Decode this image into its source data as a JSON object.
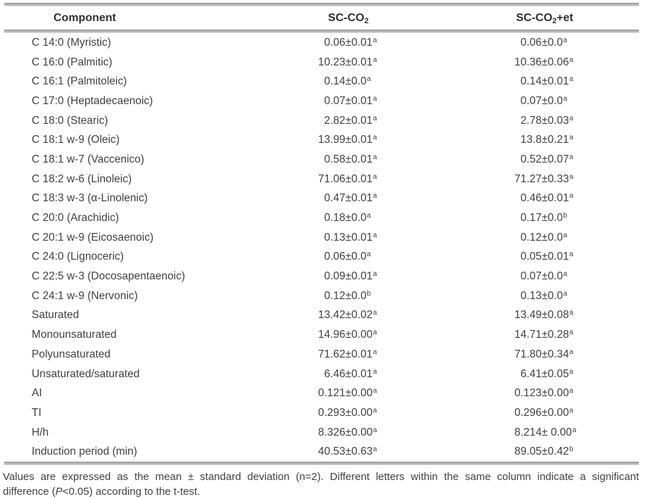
{
  "table": {
    "plus_minus": "±",
    "header": {
      "component": "Component",
      "col2": {
        "prefix": "SC-CO",
        "sub": "2",
        "suffix": ""
      },
      "col3": {
        "prefix": "SC-CO",
        "sub": "2",
        "suffix": "+et"
      }
    },
    "rows": [
      {
        "component": "C 14:0 (Myristic)",
        "sc_co2": {
          "mean": "0.06",
          "sd": "0.01",
          "sup": "a"
        },
        "sc_co2_et": {
          "mean": "0.06",
          "sd": "0.0",
          "sup": "a"
        }
      },
      {
        "component": "C 16:0 (Palmitic)",
        "sc_co2": {
          "mean": "10.23",
          "sd": "0.01",
          "sup": "a"
        },
        "sc_co2_et": {
          "mean": "10.36",
          "sd": "0.06",
          "sup": "a"
        }
      },
      {
        "component": "C 16:1 (Palmitoleic)",
        "sc_co2": {
          "mean": "0.14",
          "sd": "0.0",
          "sup": "a"
        },
        "sc_co2_et": {
          "mean": "0.14",
          "sd": "0.01",
          "sup": "a"
        }
      },
      {
        "component": "C 17:0 (Heptadecaenoic)",
        "sc_co2": {
          "mean": "0.07",
          "sd": "0.01",
          "sup": "a"
        },
        "sc_co2_et": {
          "mean": "0.07",
          "sd": "0.0",
          "sup": "a"
        }
      },
      {
        "component": "C 18:0 (Stearic)",
        "sc_co2": {
          "mean": "2.82",
          "sd": "0.01",
          "sup": "a"
        },
        "sc_co2_et": {
          "mean": "2.78",
          "sd": "0.03",
          "sup": "a"
        }
      },
      {
        "component": "C 18:1 w-9 (Oleic)",
        "sc_co2": {
          "mean": "13.99",
          "sd": "0.01",
          "sup": "a"
        },
        "sc_co2_et": {
          "mean": "13.8",
          "sd": "0.21",
          "sup": "a"
        }
      },
      {
        "component": "C 18:1 w-7 (Vaccenico)",
        "sc_co2": {
          "mean": "0.58",
          "sd": "0.01",
          "sup": "a"
        },
        "sc_co2_et": {
          "mean": "0.52",
          "sd": "0.07",
          "sup": "a"
        }
      },
      {
        "component": "C 18:2 w-6 (Linoleic)",
        "sc_co2": {
          "mean": "71.06",
          "sd": "0.01",
          "sup": "a"
        },
        "sc_co2_et": {
          "mean": "71.27",
          "sd": "0.33",
          "sup": "a"
        }
      },
      {
        "component": "C 18:3 w-3 (α-Linolenic)",
        "sc_co2": {
          "mean": "0.47",
          "sd": "0.01",
          "sup": "a"
        },
        "sc_co2_et": {
          "mean": "0.46",
          "sd": "0.01",
          "sup": "a"
        }
      },
      {
        "component": "C 20:0 (Arachidic)",
        "sc_co2": {
          "mean": "0.18",
          "sd": "0.0",
          "sup": "a"
        },
        "sc_co2_et": {
          "mean": "0.17",
          "sd": "0.0",
          "sup": "b"
        }
      },
      {
        "component": "C 20:1 w-9 (Eicosaenoic)",
        "sc_co2": {
          "mean": "0.13",
          "sd": "0.01",
          "sup": "a"
        },
        "sc_co2_et": {
          "mean": "0.12",
          "sd": "0.0",
          "sup": "a"
        }
      },
      {
        "component": "C 24:0 (Lignoceric)",
        "sc_co2": {
          "mean": "0.06",
          "sd": "0.0",
          "sup": "a"
        },
        "sc_co2_et": {
          "mean": "0.05",
          "sd": "0.01",
          "sup": "a"
        }
      },
      {
        "component": "C 22:5 w-3 (Docosapentaenoic)",
        "sc_co2": {
          "mean": "0.09",
          "sd": "0.01",
          "sup": "a"
        },
        "sc_co2_et": {
          "mean": "0.07",
          "sd": "0.0",
          "sup": "a"
        }
      },
      {
        "component": "C 24:1 w-9 (Nervonic)",
        "sc_co2": {
          "mean": "0.12",
          "sd": "0.0",
          "sup": "b"
        },
        "sc_co2_et": {
          "mean": "0.13",
          "sd": "0.0",
          "sup": "a"
        }
      },
      {
        "component": "Saturated",
        "sc_co2": {
          "mean": "13.42",
          "sd": "0.02",
          "sup": "a"
        },
        "sc_co2_et": {
          "mean": "13.49",
          "sd": "0.08",
          "sup": "a"
        }
      },
      {
        "component": "Monounsaturated",
        "sc_co2": {
          "mean": "14.96",
          "sd": "0.00",
          "sup": "a"
        },
        "sc_co2_et": {
          "mean": "14.71",
          "sd": "0.28",
          "sup": "a"
        }
      },
      {
        "component": "Polyunsaturated",
        "sc_co2": {
          "mean": "71.62",
          "sd": "0.01",
          "sup": "a"
        },
        "sc_co2_et": {
          "mean": "71.80",
          "sd": "0.34",
          "sup": "a"
        }
      },
      {
        "component": "Unsaturated/saturated",
        "sc_co2": {
          "mean": "6.46",
          "sd": "0.01",
          "sup": "a"
        },
        "sc_co2_et": {
          "mean": "6.41",
          "sd": "0.05",
          "sup": "a"
        }
      },
      {
        "component": "AI",
        "sc_co2": {
          "mean": "0.121",
          "sd": "0.00",
          "sup": "a"
        },
        "sc_co2_et": {
          "mean": "0.123",
          "sd": "0.00",
          "sup": "a"
        }
      },
      {
        "component": "TI",
        "sc_co2": {
          "mean": "0.293",
          "sd": "0.00",
          "sup": "a"
        },
        "sc_co2_et": {
          "mean": "0.296",
          "sd": "0.00",
          "sup": "a"
        }
      },
      {
        "component": "H/h",
        "sc_co2": {
          "mean": "8.326",
          "sd": "0.00",
          "sup": "a"
        },
        "sc_co2_et": {
          "mean": "8.214",
          "sd": " 0.00",
          "sup": "a"
        }
      },
      {
        "component": "Induction period (min)",
        "sc_co2": {
          "mean": "40.53",
          "sd": "0.63",
          "sup": "a"
        },
        "sc_co2_et": {
          "mean": "89.05",
          "sd": "0.42",
          "sup": "b"
        }
      }
    ],
    "footnote": {
      "line1": "Values are expressed as the mean ± standard deviation (n=2). Different letters within the same column indicate a significant",
      "line2_pre": "difference (",
      "line2_italic": "P",
      "line2_post": "<0.05) according to the t-test."
    }
  },
  "colors": {
    "rule_gray": "#b5b5b5",
    "text": "#414141"
  }
}
